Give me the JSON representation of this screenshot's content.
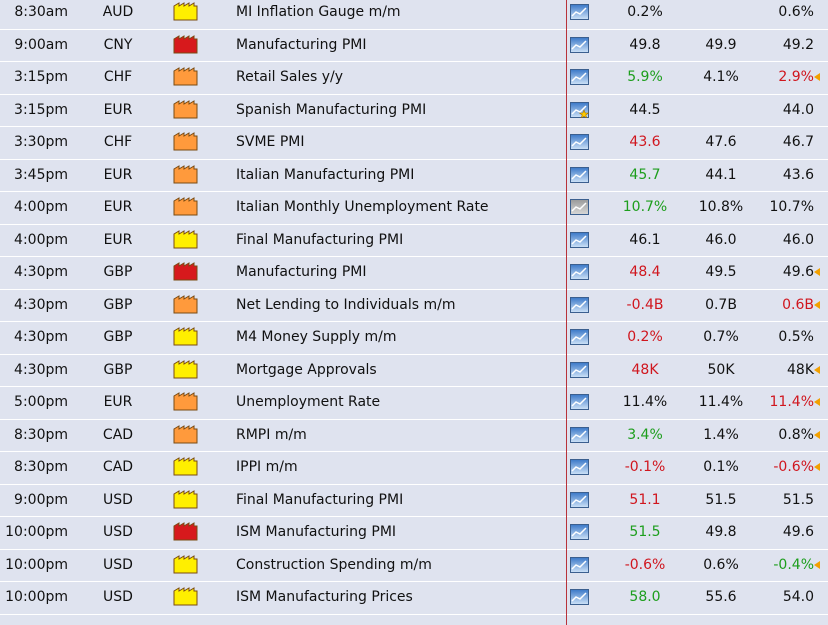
{
  "colors": {
    "impact": {
      "high": "#d7191c",
      "medium": "#ff9a3c",
      "low": "#ffef00"
    },
    "better": "#1d9e1d",
    "worse": "#d0161e",
    "revision_marker": "#f2a000"
  },
  "events": [
    {
      "time": "8:30am",
      "currency": "AUD",
      "impact": "low",
      "title": "MI Inflation Gauge m/m",
      "graph": "chart-icon",
      "actual": "0.2%",
      "actual_status": "",
      "forecast": "",
      "previous": "0.6%",
      "previous_status": "",
      "revised": false
    },
    {
      "time": "9:00am",
      "currency": "CNY",
      "impact": "high",
      "title": "Manufacturing PMI",
      "graph": "chart-icon",
      "actual": "49.8",
      "actual_status": "",
      "forecast": "49.9",
      "previous": "49.2",
      "previous_status": "",
      "revised": false
    },
    {
      "time": "3:15pm",
      "currency": "CHF",
      "impact": "medium",
      "title": "Retail Sales y/y",
      "graph": "chart-icon",
      "actual": "5.9%",
      "actual_status": "better",
      "forecast": "4.1%",
      "previous": "2.9%",
      "previous_status": "worse",
      "revised": true
    },
    {
      "time": "3:15pm",
      "currency": "EUR",
      "impact": "medium",
      "title": "Spanish Manufacturing PMI",
      "graph": "chart-star-icon",
      "actual": "44.5",
      "actual_status": "",
      "forecast": "",
      "previous": "44.0",
      "previous_status": "",
      "revised": false
    },
    {
      "time": "3:30pm",
      "currency": "CHF",
      "impact": "medium",
      "title": "SVME PMI",
      "graph": "chart-icon",
      "actual": "43.6",
      "actual_status": "worse",
      "forecast": "47.6",
      "previous": "46.7",
      "previous_status": "",
      "revised": false
    },
    {
      "time": "3:45pm",
      "currency": "EUR",
      "impact": "medium",
      "title": "Italian Manufacturing PMI",
      "graph": "chart-icon",
      "actual": "45.7",
      "actual_status": "better",
      "forecast": "44.1",
      "previous": "43.6",
      "previous_status": "",
      "revised": false
    },
    {
      "time": "4:00pm",
      "currency": "EUR",
      "impact": "medium",
      "title": "Italian Monthly Unemployment Rate",
      "graph": "chart-grey-icon",
      "actual": "10.7%",
      "actual_status": "better",
      "forecast": "10.8%",
      "previous": "10.7%",
      "previous_status": "",
      "revised": false
    },
    {
      "time": "4:00pm",
      "currency": "EUR",
      "impact": "low",
      "title": "Final Manufacturing PMI",
      "graph": "chart-icon",
      "actual": "46.1",
      "actual_status": "",
      "forecast": "46.0",
      "previous": "46.0",
      "previous_status": "",
      "revised": false
    },
    {
      "time": "4:30pm",
      "currency": "GBP",
      "impact": "high",
      "title": "Manufacturing PMI",
      "graph": "chart-icon",
      "actual": "48.4",
      "actual_status": "worse",
      "forecast": "49.5",
      "previous": "49.6",
      "previous_status": "",
      "revised": true
    },
    {
      "time": "4:30pm",
      "currency": "GBP",
      "impact": "medium",
      "title": "Net Lending to Individuals m/m",
      "graph": "chart-icon",
      "actual": "-0.4B",
      "actual_status": "worse",
      "forecast": "0.7B",
      "previous": "0.6B",
      "previous_status": "worse",
      "revised": true
    },
    {
      "time": "4:30pm",
      "currency": "GBP",
      "impact": "low",
      "title": "M4 Money Supply m/m",
      "graph": "chart-icon",
      "actual": "0.2%",
      "actual_status": "worse",
      "forecast": "0.7%",
      "previous": "0.5%",
      "previous_status": "",
      "revised": false
    },
    {
      "time": "4:30pm",
      "currency": "GBP",
      "impact": "low",
      "title": "Mortgage Approvals",
      "graph": "chart-icon",
      "actual": "48K",
      "actual_status": "worse",
      "forecast": "50K",
      "previous": "48K",
      "previous_status": "",
      "revised": true
    },
    {
      "time": "5:00pm",
      "currency": "EUR",
      "impact": "medium",
      "title": "Unemployment Rate",
      "graph": "chart-icon",
      "actual": "11.4%",
      "actual_status": "",
      "forecast": "11.4%",
      "previous": "11.4%",
      "previous_status": "worse",
      "revised": true
    },
    {
      "time": "8:30pm",
      "currency": "CAD",
      "impact": "medium",
      "title": "RMPI m/m",
      "graph": "chart-icon",
      "actual": "3.4%",
      "actual_status": "better",
      "forecast": "1.4%",
      "previous": "0.8%",
      "previous_status": "",
      "revised": true
    },
    {
      "time": "8:30pm",
      "currency": "CAD",
      "impact": "low",
      "title": "IPPI m/m",
      "graph": "chart-icon",
      "actual": "-0.1%",
      "actual_status": "worse",
      "forecast": "0.1%",
      "previous": "-0.6%",
      "previous_status": "worse",
      "revised": true
    },
    {
      "time": "9:00pm",
      "currency": "USD",
      "impact": "low",
      "title": "Final Manufacturing PMI",
      "graph": "chart-icon",
      "actual": "51.1",
      "actual_status": "worse",
      "forecast": "51.5",
      "previous": "51.5",
      "previous_status": "",
      "revised": false
    },
    {
      "time": "10:00pm",
      "currency": "USD",
      "impact": "high",
      "title": "ISM Manufacturing PMI",
      "graph": "chart-icon",
      "actual": "51.5",
      "actual_status": "better",
      "forecast": "49.8",
      "previous": "49.6",
      "previous_status": "",
      "revised": false
    },
    {
      "time": "10:00pm",
      "currency": "USD",
      "impact": "low",
      "title": "Construction Spending m/m",
      "graph": "chart-icon",
      "actual": "-0.6%",
      "actual_status": "worse",
      "forecast": "0.6%",
      "previous": "-0.4%",
      "previous_status": "better",
      "revised": true
    },
    {
      "time": "10:00pm",
      "currency": "USD",
      "impact": "low",
      "title": "ISM Manufacturing Prices",
      "graph": "chart-icon",
      "actual": "58.0",
      "actual_status": "better",
      "forecast": "55.6",
      "previous": "54.0",
      "previous_status": "",
      "revised": false
    }
  ]
}
